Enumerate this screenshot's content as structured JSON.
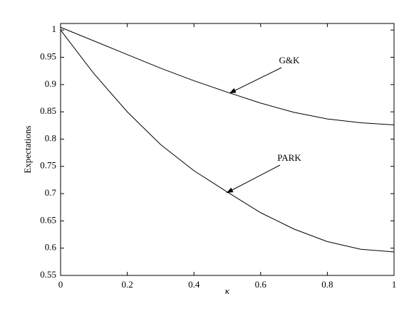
{
  "chart_data": {
    "type": "line",
    "xlabel": "κ",
    "ylabel": "Expectations",
    "x": [
      0,
      0.1,
      0.2,
      0.3,
      0.4,
      0.5,
      0.6,
      0.7,
      0.8,
      0.9,
      1
    ],
    "series": [
      {
        "name": "G&K",
        "color": "#000000",
        "values": [
          1.005,
          0.98,
          0.955,
          0.93,
          0.907,
          0.886,
          0.866,
          0.849,
          0.837,
          0.83,
          0.826
        ]
      },
      {
        "name": "PARK",
        "color": "#000000",
        "values": [
          1.0,
          0.92,
          0.85,
          0.79,
          0.742,
          0.703,
          0.665,
          0.635,
          0.612,
          0.598,
          0.593
        ]
      }
    ],
    "xlim": [
      0,
      1
    ],
    "xticks": [
      0,
      0.2,
      0.4,
      0.6,
      0.8,
      1
    ],
    "ylim": [
      0.55,
      1.012
    ],
    "yticks": [
      0.55,
      0.6,
      0.65,
      0.7,
      0.75,
      0.8,
      0.85,
      0.9,
      0.95,
      1
    ],
    "grid": false
  }
}
